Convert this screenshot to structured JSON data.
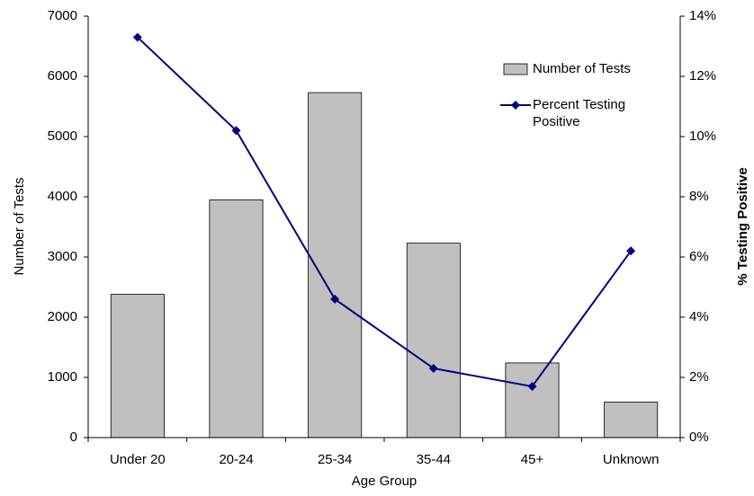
{
  "chart_data": {
    "type": "bar_line",
    "x_label": "Age Group",
    "y_label": "Number of Tests",
    "y2_label": "% Testing Positive",
    "categories": [
      "Under 20",
      "20-24",
      "25-34",
      "35-44",
      "45+",
      "Unknown"
    ],
    "series": [
      {
        "name": "Number of Tests",
        "type": "bar",
        "color": "#c0c0c0",
        "values": [
          2380,
          3950,
          5730,
          3230,
          1240,
          590
        ]
      },
      {
        "name": "Percent Testing Positive",
        "type": "line",
        "axis": "y2",
        "color": "#000080",
        "values": [
          13.3,
          10.2,
          4.6,
          2.3,
          1.7,
          6.2
        ]
      }
    ],
    "ylim": [
      0,
      7000
    ],
    "yticks": [
      0,
      1000,
      2000,
      3000,
      4000,
      5000,
      6000,
      7000
    ],
    "y2lim": [
      0,
      14
    ],
    "y2ticks": [
      {
        "value": 0,
        "label": "0%"
      },
      {
        "value": 2,
        "label": "2%"
      },
      {
        "value": 4,
        "label": "4%"
      },
      {
        "value": 6,
        "label": "6%"
      },
      {
        "value": 8,
        "label": "8%"
      },
      {
        "value": 10,
        "label": "10%"
      },
      {
        "value": 12,
        "label": "12%"
      },
      {
        "value": 14,
        "label": "14%"
      }
    ],
    "legend": "top-right"
  }
}
